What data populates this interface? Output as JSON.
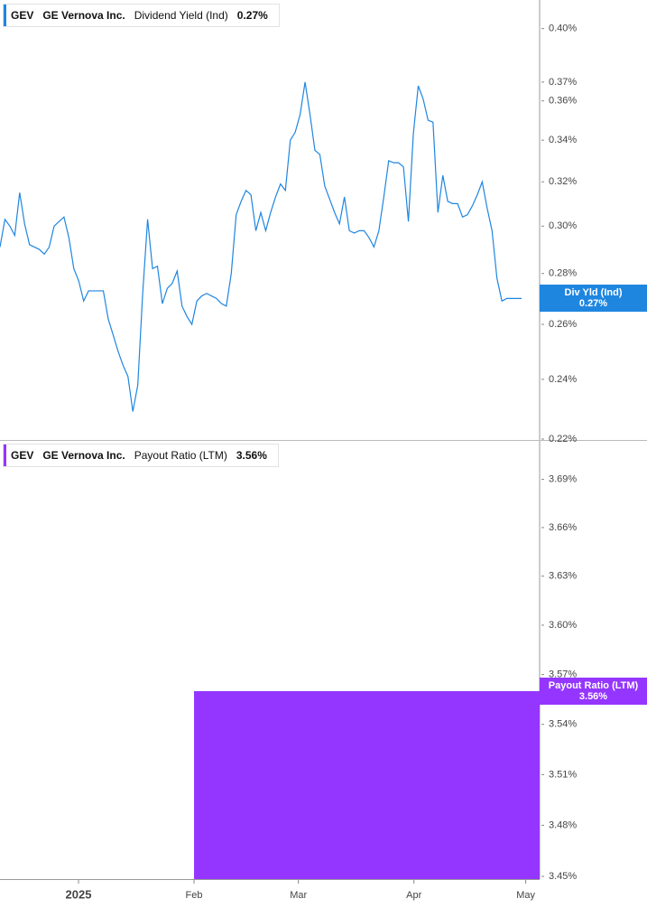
{
  "chart_data": [
    {
      "type": "line",
      "ticker": "GEV",
      "company": "GE Vernova Inc.",
      "series": [
        {
          "name": "Dividend Yield (Ind)",
          "color": "#1f86e0",
          "values": [
            0.291,
            0.303,
            0.3,
            0.296,
            0.315,
            0.301,
            0.292,
            0.291,
            0.29,
            0.288,
            0.291,
            0.3,
            0.302,
            0.304,
            0.295,
            0.282,
            0.277,
            0.269,
            0.273,
            0.273,
            0.273,
            0.273,
            0.262,
            0.256,
            0.25,
            0.245,
            0.241,
            0.229,
            0.238,
            0.272,
            0.303,
            0.282,
            0.283,
            0.268,
            0.274,
            0.276,
            0.281,
            0.267,
            0.263,
            0.26,
            0.269,
            0.271,
            0.272,
            0.271,
            0.27,
            0.268,
            0.267,
            0.28,
            0.305,
            0.311,
            0.316,
            0.314,
            0.298,
            0.306,
            0.298,
            0.306,
            0.313,
            0.319,
            0.316,
            0.34,
            0.344,
            0.353,
            0.37,
            0.353,
            0.335,
            0.333,
            0.318,
            0.312,
            0.306,
            0.301,
            0.313,
            0.298,
            0.297,
            0.298,
            0.298,
            0.295,
            0.291,
            0.298,
            0.313,
            0.33,
            0.329,
            0.329,
            0.327,
            0.302,
            0.343,
            0.368,
            0.361,
            0.35,
            0.349,
            0.306,
            0.323,
            0.311,
            0.31,
            0.31,
            0.304,
            0.305,
            0.309,
            0.314,
            0.32,
            0.308,
            0.298,
            0.278,
            0.269,
            0.27,
            0.27,
            0.27,
            0.27
          ]
        }
      ],
      "last_value": 0.27,
      "last_value_label": "0.27%",
      "badge_label": "Div Yld (Ind)",
      "log_scale": true,
      "ylim": [
        0.22,
        0.417
      ],
      "yticks": [
        {
          "value": 0.4,
          "label": "0.40%"
        },
        {
          "value": 0.37,
          "label": "0.37%"
        },
        {
          "value": 0.36,
          "label": "0.36%"
        },
        {
          "value": 0.34,
          "label": "0.34%"
        },
        {
          "value": 0.32,
          "label": "0.32%"
        },
        {
          "value": 0.3,
          "label": "0.30%"
        },
        {
          "value": 0.28,
          "label": "0.28%"
        },
        {
          "value": 0.26,
          "label": "0.26%"
        },
        {
          "value": 0.24,
          "label": "0.24%"
        },
        {
          "value": 0.22,
          "label": "0.22%"
        }
      ]
    },
    {
      "type": "bar",
      "ticker": "GEV",
      "company": "GE Vernova Inc.",
      "x": [
        "2025-02"
      ],
      "series": [
        {
          "name": "Payout Ratio (LTM)",
          "color": "#9436ff",
          "values": [
            3.56
          ],
          "value_labels": [
            "3.56%"
          ]
        }
      ],
      "log_scale": true,
      "ylim": [
        3.45,
        3.713
      ],
      "yticks": [
        {
          "value": 3.69,
          "label": "3.69%"
        },
        {
          "value": 3.66,
          "label": "3.66%"
        },
        {
          "value": 3.63,
          "label": "3.63%"
        },
        {
          "value": 3.6,
          "label": "3.60%"
        },
        {
          "value": 3.57,
          "label": "3.57%"
        },
        {
          "value": 3.54,
          "label": "3.54%"
        },
        {
          "value": 3.51,
          "label": "3.51%"
        },
        {
          "value": 3.48,
          "label": "3.48%"
        },
        {
          "value": 3.45,
          "label": "3.45%"
        }
      ],
      "xticks": [
        {
          "value": "2025-01",
          "label": "2025"
        },
        {
          "value": "2025-02",
          "label": "Feb"
        },
        {
          "value": "2025-03",
          "label": "Mar"
        },
        {
          "value": "2025-04",
          "label": "Apr"
        },
        {
          "value": "2025-05",
          "label": "May"
        }
      ]
    }
  ]
}
